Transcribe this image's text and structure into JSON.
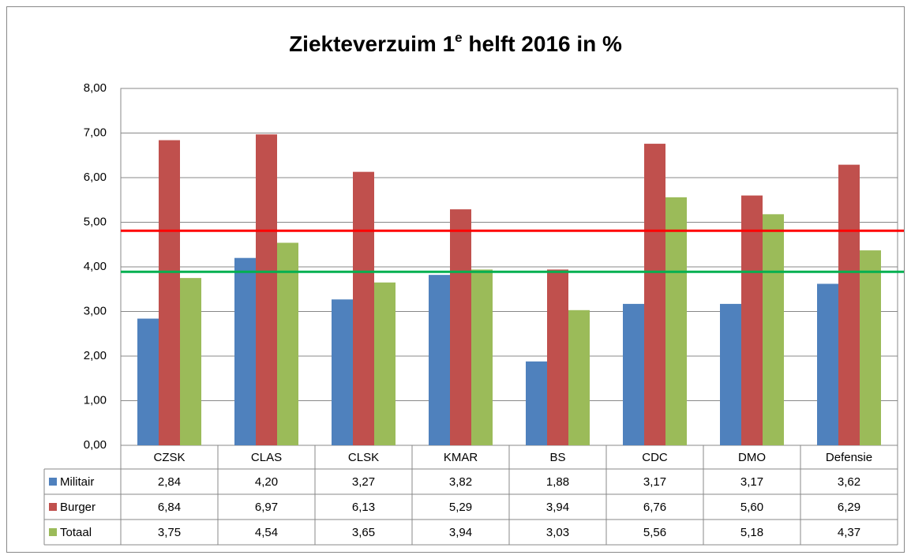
{
  "chart_data": {
    "type": "bar",
    "title": [
      "Ziekteverzuim 1",
      "e",
      " helft 2016 in %"
    ],
    "categories": [
      "CZSK",
      "CLAS",
      "CLSK",
      "KMAR",
      "BS",
      "CDC",
      "DMO",
      "Defensie"
    ],
    "series": [
      {
        "name": "Militair",
        "color": "#4f81bd",
        "values": [
          2.84,
          4.2,
          3.27,
          3.82,
          1.88,
          3.17,
          3.17,
          3.62
        ],
        "value_labels": [
          "2,84",
          "4,20",
          "3,27",
          "3,82",
          "1,88",
          "3,17",
          "3,17",
          "3,62"
        ]
      },
      {
        "name": "Burger",
        "color": "#c0504d",
        "values": [
          6.84,
          6.97,
          6.13,
          5.29,
          3.94,
          6.76,
          5.6,
          6.29
        ],
        "value_labels": [
          "6,84",
          "6,97",
          "6,13",
          "5,29",
          "3,94",
          "6,76",
          "5,60",
          "6,29"
        ]
      },
      {
        "name": "Totaal",
        "color": "#9bbb59",
        "values": [
          3.75,
          4.54,
          3.65,
          3.94,
          3.03,
          5.56,
          5.18,
          4.37
        ],
        "value_labels": [
          "3,75",
          "4,54",
          "3,65",
          "3,94",
          "3,03",
          "5,56",
          "5,18",
          "4,37"
        ]
      }
    ],
    "ylim": [
      0,
      8
    ],
    "yticks": [
      {
        "value": 0,
        "label": "0,00"
      },
      {
        "value": 1,
        "label": "1,00"
      },
      {
        "value": 2,
        "label": "2,00"
      },
      {
        "value": 3,
        "label": "3,00"
      },
      {
        "value": 4,
        "label": "4,00"
      },
      {
        "value": 5,
        "label": "5,00"
      },
      {
        "value": 6,
        "label": "6,00"
      },
      {
        "value": 7,
        "label": "7,00"
      },
      {
        "value": 8,
        "label": "8,00"
      }
    ],
    "grid": true,
    "reference_lines": [
      {
        "value": 4.81,
        "color": "#ff0000"
      },
      {
        "value": 3.89,
        "color": "#00b050"
      }
    ]
  }
}
